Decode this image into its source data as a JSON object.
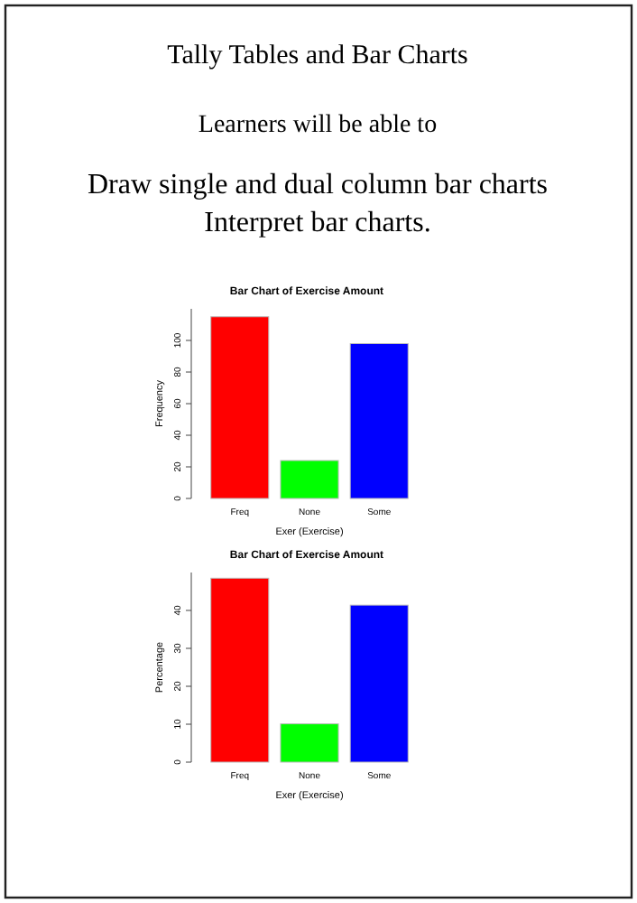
{
  "chart_data": [
    {
      "type": "other",
      "title": "Tally Tables and Bar Charts",
      "annotations": [
        "Learners will be able to",
        "Draw single and dual column bar charts",
        "Interpret bar charts."
      ]
    },
    {
      "type": "bar",
      "title": "Bar Chart of Exercise Amount",
      "xlabel": "Exer (Exercise)",
      "ylabel": "Frequency",
      "categories": [
        "Freq",
        "None",
        "Some"
      ],
      "values": [
        115,
        24,
        98
      ],
      "colors": [
        "#ff0000",
        "#00ff00",
        "#0000ff"
      ],
      "ylim": [
        0,
        120
      ],
      "yticks": [
        0,
        20,
        40,
        60,
        80,
        100
      ]
    },
    {
      "type": "bar",
      "title": "Bar Chart of Exercise Amount",
      "xlabel": "Exer (Exercise)",
      "ylabel": "Percentage",
      "categories": [
        "Freq",
        "None",
        "Some"
      ],
      "values": [
        48.5,
        10.1,
        41.4
      ],
      "colors": [
        "#ff0000",
        "#00ff00",
        "#0000ff"
      ],
      "ylim": [
        0,
        50
      ],
      "yticks": [
        0,
        10,
        20,
        30,
        40
      ]
    }
  ]
}
